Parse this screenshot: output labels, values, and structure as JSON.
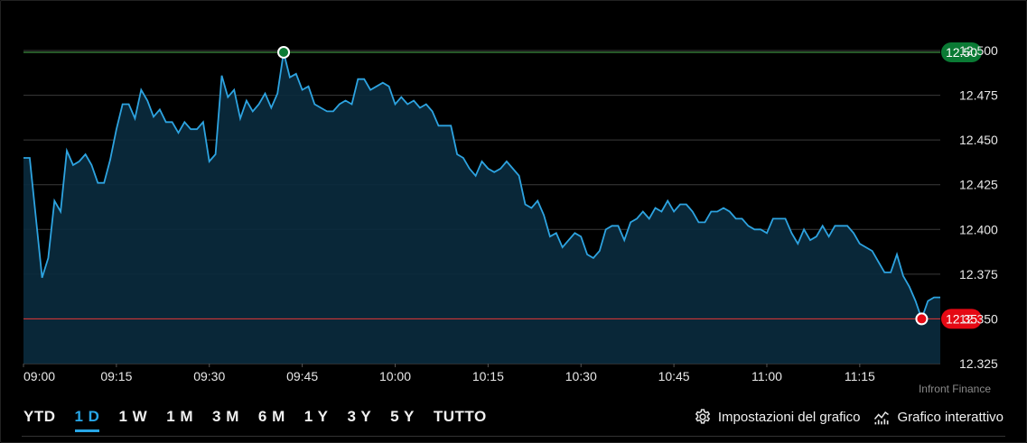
{
  "chart_data": {
    "type": "area",
    "x_ticks": [
      "09:00",
      "09:15",
      "09:30",
      "09:45",
      "10:00",
      "10:15",
      "10:30",
      "10:45",
      "11:00",
      "11:15"
    ],
    "y_ticks": [
      "12.325",
      "12.350",
      "12.375",
      "12.400",
      "12.425",
      "12.450",
      "12.475",
      "12.500"
    ],
    "ylim": [
      12.325,
      12.5
    ],
    "x_range_minutes": [
      0,
      148
    ],
    "high": {
      "label": "12.50",
      "value": 12.499,
      "x": 42,
      "color": "#0a7a34"
    },
    "low": {
      "label": "12.35",
      "value": 12.35,
      "x": 145,
      "color": "#e50914"
    },
    "line_color": "#2da3e0",
    "fill_color": "#0a2b3e",
    "grid": true,
    "series": [
      {
        "values": [
          [
            0,
            12.44
          ],
          [
            1,
            12.44
          ],
          [
            3,
            12.373
          ],
          [
            4,
            12.384
          ],
          [
            5,
            12.416
          ],
          [
            6,
            12.41
          ],
          [
            7,
            12.444
          ],
          [
            8,
            12.436
          ],
          [
            9,
            12.438
          ],
          [
            10,
            12.442
          ],
          [
            11,
            12.436
          ],
          [
            12,
            12.426
          ],
          [
            13,
            12.426
          ],
          [
            14,
            12.439
          ],
          [
            15,
            12.456
          ],
          [
            16,
            12.47
          ],
          [
            17,
            12.47
          ],
          [
            18,
            12.462
          ],
          [
            19,
            12.478
          ],
          [
            20,
            12.472
          ],
          [
            21,
            12.463
          ],
          [
            22,
            12.467
          ],
          [
            23,
            12.46
          ],
          [
            24,
            12.46
          ],
          [
            25,
            12.454
          ],
          [
            26,
            12.46
          ],
          [
            27,
            12.456
          ],
          [
            28,
            12.456
          ],
          [
            29,
            12.46
          ],
          [
            30,
            12.438
          ],
          [
            31,
            12.442
          ],
          [
            32,
            12.486
          ],
          [
            33,
            12.474
          ],
          [
            34,
            12.478
          ],
          [
            35,
            12.462
          ],
          [
            36,
            12.472
          ],
          [
            37,
            12.466
          ],
          [
            38,
            12.47
          ],
          [
            39,
            12.476
          ],
          [
            40,
            12.468
          ],
          [
            41,
            12.476
          ],
          [
            42,
            12.499
          ],
          [
            43,
            12.485
          ],
          [
            44,
            12.487
          ],
          [
            45,
            12.478
          ],
          [
            46,
            12.48
          ],
          [
            47,
            12.47
          ],
          [
            48,
            12.468
          ],
          [
            49,
            12.466
          ],
          [
            50,
            12.466
          ],
          [
            51,
            12.47
          ],
          [
            52,
            12.472
          ],
          [
            53,
            12.47
          ],
          [
            54,
            12.484
          ],
          [
            55,
            12.484
          ],
          [
            56,
            12.478
          ],
          [
            57,
            12.48
          ],
          [
            58,
            12.482
          ],
          [
            59,
            12.48
          ],
          [
            60,
            12.47
          ],
          [
            61,
            12.474
          ],
          [
            62,
            12.47
          ],
          [
            63,
            12.472
          ],
          [
            64,
            12.468
          ],
          [
            65,
            12.47
          ],
          [
            66,
            12.466
          ],
          [
            67,
            12.458
          ],
          [
            68,
            12.458
          ],
          [
            69,
            12.458
          ],
          [
            70,
            12.442
          ],
          [
            71,
            12.44
          ],
          [
            72,
            12.434
          ],
          [
            73,
            12.43
          ],
          [
            74,
            12.438
          ],
          [
            75,
            12.434
          ],
          [
            76,
            12.432
          ],
          [
            77,
            12.434
          ],
          [
            78,
            12.438
          ],
          [
            79,
            12.434
          ],
          [
            80,
            12.43
          ],
          [
            81,
            12.414
          ],
          [
            82,
            12.412
          ],
          [
            83,
            12.416
          ],
          [
            84,
            12.408
          ],
          [
            85,
            12.396
          ],
          [
            86,
            12.398
          ],
          [
            87,
            12.39
          ],
          [
            88,
            12.394
          ],
          [
            89,
            12.398
          ],
          [
            90,
            12.396
          ],
          [
            91,
            12.386
          ],
          [
            92,
            12.384
          ],
          [
            93,
            12.388
          ],
          [
            94,
            12.4
          ],
          [
            95,
            12.402
          ],
          [
            96,
            12.402
          ],
          [
            97,
            12.394
          ],
          [
            98,
            12.404
          ],
          [
            99,
            12.406
          ],
          [
            100,
            12.41
          ],
          [
            101,
            12.406
          ],
          [
            102,
            12.412
          ],
          [
            103,
            12.41
          ],
          [
            104,
            12.416
          ],
          [
            105,
            12.41
          ],
          [
            106,
            12.414
          ],
          [
            107,
            12.414
          ],
          [
            108,
            12.41
          ],
          [
            109,
            12.404
          ],
          [
            110,
            12.404
          ],
          [
            111,
            12.41
          ],
          [
            112,
            12.41
          ],
          [
            113,
            12.412
          ],
          [
            114,
            12.41
          ],
          [
            115,
            12.406
          ],
          [
            116,
            12.406
          ],
          [
            117,
            12.402
          ],
          [
            118,
            12.4
          ],
          [
            119,
            12.4
          ],
          [
            120,
            12.398
          ],
          [
            121,
            12.406
          ],
          [
            122,
            12.406
          ],
          [
            123,
            12.406
          ],
          [
            124,
            12.398
          ],
          [
            125,
            12.392
          ],
          [
            126,
            12.4
          ],
          [
            127,
            12.394
          ],
          [
            128,
            12.396
          ],
          [
            129,
            12.402
          ],
          [
            130,
            12.396
          ],
          [
            131,
            12.402
          ],
          [
            132,
            12.402
          ],
          [
            133,
            12.402
          ],
          [
            134,
            12.398
          ],
          [
            135,
            12.392
          ],
          [
            136,
            12.39
          ],
          [
            137,
            12.388
          ],
          [
            138,
            12.382
          ],
          [
            139,
            12.376
          ],
          [
            140,
            12.376
          ],
          [
            141,
            12.386
          ],
          [
            142,
            12.374
          ],
          [
            143,
            12.368
          ],
          [
            144,
            12.36
          ],
          [
            145,
            12.35
          ],
          [
            146,
            12.36
          ],
          [
            147,
            12.362
          ],
          [
            148,
            12.362
          ]
        ]
      }
    ]
  },
  "source": "Infront Finance",
  "ranges": [
    {
      "label": "YTD",
      "active": false
    },
    {
      "label": "1 D",
      "active": true
    },
    {
      "label": "1 W",
      "active": false
    },
    {
      "label": "1 M",
      "active": false
    },
    {
      "label": "3 M",
      "active": false
    },
    {
      "label": "6 M",
      "active": false
    },
    {
      "label": "1 Y",
      "active": false
    },
    {
      "label": "3 Y",
      "active": false
    },
    {
      "label": "5 Y",
      "active": false
    },
    {
      "label": "TUTTO",
      "active": false
    }
  ],
  "tools": {
    "settings_label": "Impostazioni del grafico",
    "settings_icon": "gear-icon",
    "interactive_label": "Grafico interattivo",
    "interactive_icon": "line-chart-icon"
  }
}
